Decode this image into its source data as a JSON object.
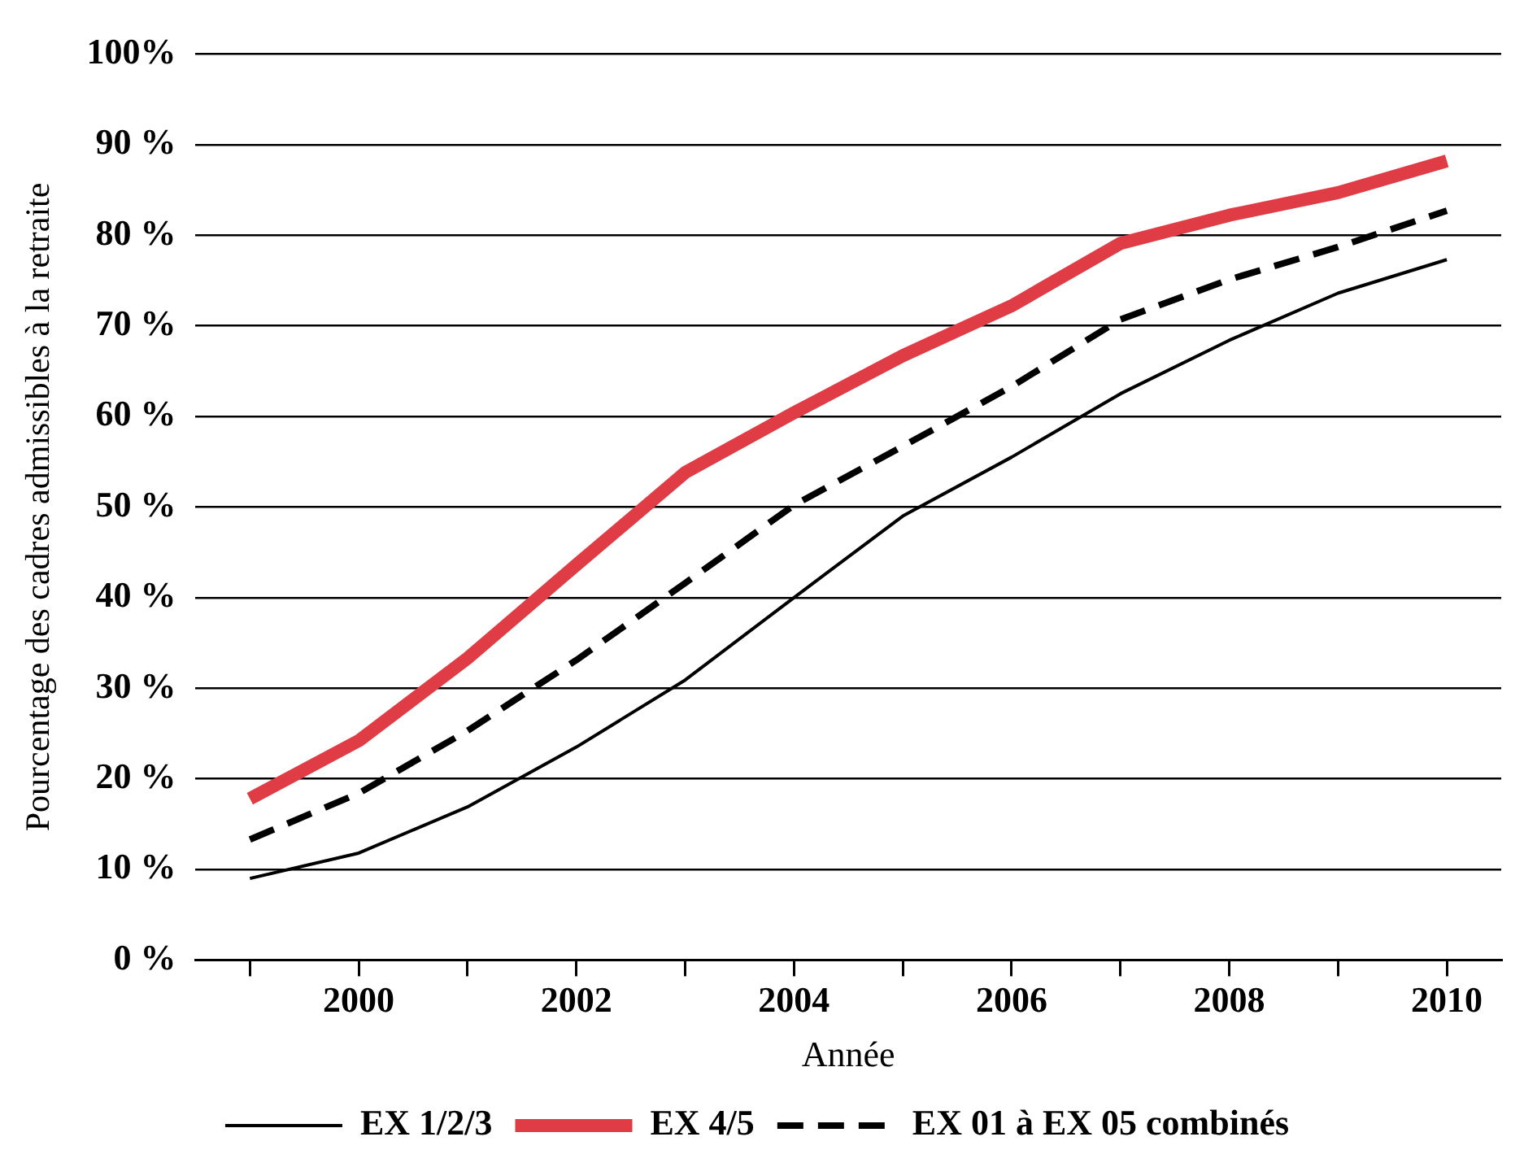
{
  "chart_data": {
    "type": "line",
    "xlabel": "Année",
    "ylabel": "Pourcentage des cadres admissibles à la retraite",
    "x": [
      1999,
      2000,
      2001,
      2002,
      2003,
      2004,
      2005,
      2006,
      2007,
      2008,
      2009,
      2010
    ],
    "series": [
      {
        "name": "EX 1/2/3",
        "color": "#000000",
        "line_style": "solid",
        "values": [
          9,
          11.8,
          16.9,
          23.5,
          30.9,
          40,
          49,
          55.5,
          62.5,
          68.4,
          73.6,
          77.3
        ]
      },
      {
        "name": "EX 4/5",
        "color": "#e03c45",
        "line_style": "solid",
        "values": [
          17.8,
          24.2,
          33.3,
          43.6,
          53.8,
          60.4,
          66.7,
          72.2,
          79.1,
          82.2,
          84.7,
          88.2
        ]
      },
      {
        "name": "EX 01 à EX 05 combinés",
        "color": "#000000",
        "line_style": "dashed",
        "values": [
          13.3,
          18.4,
          25.3,
          33.1,
          41.6,
          50.2,
          56.7,
          63.3,
          70.7,
          75.1,
          78.7,
          82.7
        ]
      }
    ],
    "xlim": [
      1998.5,
      2010.5
    ],
    "xticks": [
      {
        "value": 1999,
        "label": null
      },
      2000,
      {
        "value": 2001,
        "label": null
      },
      2002,
      {
        "value": 2003,
        "label": null
      },
      2004,
      {
        "value": 2005,
        "label": null
      },
      2006,
      {
        "value": 2007,
        "label": null
      },
      2008,
      {
        "value": 2009,
        "label": null
      },
      2010
    ],
    "ylim": [
      0,
      100
    ],
    "yticks": [
      {
        "value": 0,
        "label": "0 %"
      },
      {
        "value": 10,
        "label": "10 %"
      },
      {
        "value": 20,
        "label": "20 %"
      },
      {
        "value": 30,
        "label": "30 %"
      },
      {
        "value": 40,
        "label": "40 %"
      },
      {
        "value": 50,
        "label": "50 %"
      },
      {
        "value": 60,
        "label": "60 %"
      },
      {
        "value": 70,
        "label": "70 %"
      },
      {
        "value": 80,
        "label": "80 %"
      },
      {
        "value": 90,
        "label": "90 %"
      },
      {
        "value": 100,
        "label": "100%"
      }
    ],
    "grid": "y",
    "legend": "bottom",
    "marker": "none"
  }
}
